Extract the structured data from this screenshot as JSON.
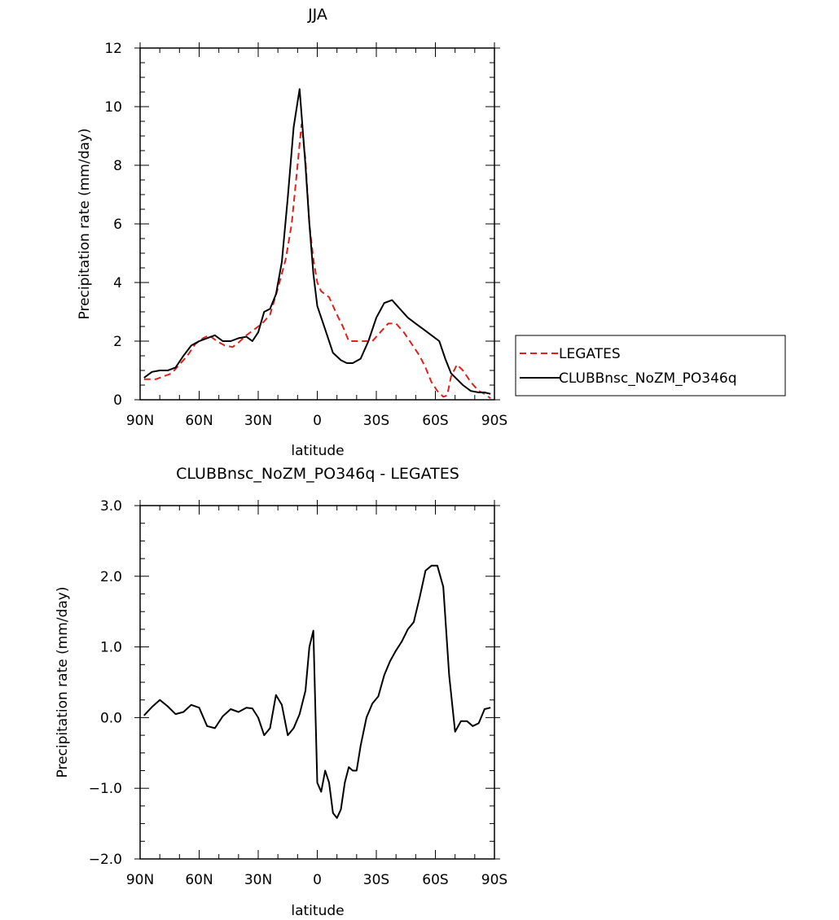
{
  "chart_data": [
    {
      "type": "line",
      "title": "JJA",
      "xlabel": "latitude",
      "ylabel": "Precipitation rate (mm/day)",
      "xlim": [
        90,
        -90
      ],
      "ylim": [
        0,
        12
      ],
      "x_tick_values": [
        90,
        60,
        30,
        0,
        -30,
        -60,
        -90
      ],
      "x_tick_labels": [
        "90N",
        "60N",
        "30N",
        "0",
        "30S",
        "60S",
        "90S"
      ],
      "y_tick_values": [
        0,
        2,
        4,
        6,
        8,
        10,
        12
      ],
      "y_tick_labels": [
        "0",
        "2",
        "4",
        "6",
        "8",
        "10",
        "12"
      ],
      "grid": false,
      "legend_position": "right",
      "series": [
        {
          "name": "LEGATES",
          "color": "#e0201b",
          "dash": "dashed",
          "x": [
            88,
            82,
            78,
            74,
            70,
            66,
            62,
            58,
            55,
            51,
            47,
            43,
            40,
            36,
            32,
            28,
            24,
            20,
            16,
            13,
            10,
            8,
            6,
            4,
            2,
            0,
            -2,
            -6,
            -10,
            -13,
            -16,
            -20,
            -24,
            -28,
            -32,
            -36,
            -40,
            -44,
            -48,
            -52,
            -55,
            -58,
            -61,
            -64,
            -66,
            -68,
            -71,
            -74,
            -78,
            -82,
            -85,
            -88
          ],
          "y": [
            0.7,
            0.7,
            0.8,
            0.9,
            1.2,
            1.5,
            1.9,
            2.1,
            2.2,
            2.0,
            1.85,
            1.8,
            1.95,
            2.2,
            2.4,
            2.6,
            2.9,
            3.8,
            4.8,
            6.0,
            8.0,
            9.4,
            8.2,
            6.0,
            4.8,
            4.0,
            3.7,
            3.5,
            2.9,
            2.5,
            2.0,
            2.0,
            2.0,
            2.0,
            2.3,
            2.6,
            2.6,
            2.3,
            1.9,
            1.5,
            1.1,
            0.6,
            0.3,
            0.1,
            0.15,
            0.8,
            1.2,
            1.0,
            0.6,
            0.3,
            0.2,
            0.05
          ]
        },
        {
          "name": "CLUBBnsc_NoZM_PO346q",
          "color": "#000000",
          "dash": "solid",
          "x": [
            88,
            84,
            80,
            76,
            72,
            68,
            64,
            60,
            56,
            52,
            48,
            44,
            40,
            36,
            33,
            30,
            27,
            24,
            21,
            18,
            15,
            12,
            9,
            6,
            4,
            2,
            0,
            -4,
            -8,
            -12,
            -15,
            -18,
            -22,
            -26,
            -30,
            -34,
            -38,
            -42,
            -46,
            -50,
            -54,
            -58,
            -62,
            -65,
            -68,
            -71,
            -74,
            -78,
            -82,
            -85,
            -88
          ],
          "y": [
            0.75,
            0.95,
            1.0,
            1.0,
            1.1,
            1.5,
            1.85,
            2.0,
            2.1,
            2.2,
            2.0,
            2.0,
            2.1,
            2.15,
            2.0,
            2.3,
            3.0,
            3.1,
            3.6,
            4.7,
            6.9,
            9.3,
            10.6,
            8.0,
            6.0,
            4.3,
            3.2,
            2.4,
            1.6,
            1.35,
            1.25,
            1.25,
            1.4,
            2.0,
            2.8,
            3.3,
            3.4,
            3.1,
            2.8,
            2.6,
            2.4,
            2.2,
            2.0,
            1.4,
            0.9,
            0.7,
            0.5,
            0.3,
            0.25,
            0.25,
            0.2
          ]
        }
      ]
    },
    {
      "type": "line",
      "title": "CLUBBnsc_NoZM_PO346q - LEGATES",
      "xlabel": "latitude",
      "ylabel": "Precipitation rate (mm/day)",
      "xlim": [
        90,
        -90
      ],
      "ylim": [
        -2.0,
        3.0
      ],
      "x_tick_values": [
        90,
        60,
        30,
        0,
        -30,
        -60,
        -90
      ],
      "x_tick_labels": [
        "90N",
        "60N",
        "30N",
        "0",
        "30S",
        "60S",
        "90S"
      ],
      "y_tick_values": [
        -2.0,
        -1.0,
        0.0,
        1.0,
        2.0,
        3.0
      ],
      "y_tick_labels": [
        "−2.0",
        "−1.0",
        "0.0",
        "1.0",
        "2.0",
        "3.0"
      ],
      "grid": false,
      "series": [
        {
          "color": "#000000",
          "dash": "solid",
          "x": [
            88,
            84,
            80,
            76,
            72,
            68,
            64,
            60,
            56,
            52,
            48,
            44,
            40,
            36,
            33,
            30,
            27,
            24,
            21,
            18,
            15,
            12,
            9,
            6,
            4,
            2,
            0,
            -2,
            -4,
            -6,
            -8,
            -10,
            -12,
            -14,
            -16,
            -18,
            -20,
            -22,
            -25,
            -28,
            -31,
            -34,
            -37,
            -40,
            -43,
            -46,
            -49,
            -52,
            -55,
            -58,
            -61,
            -64,
            -67,
            -70,
            -73,
            -76,
            -79,
            -82,
            -85,
            -88
          ],
          "y": [
            0.03,
            0.15,
            0.25,
            0.16,
            0.05,
            0.08,
            0.18,
            0.14,
            -0.12,
            -0.15,
            0.02,
            0.12,
            0.08,
            0.14,
            0.13,
            0.0,
            -0.25,
            -0.15,
            0.32,
            0.18,
            -0.25,
            -0.15,
            0.05,
            0.38,
            1.0,
            1.23,
            -0.92,
            -1.05,
            -0.75,
            -0.92,
            -1.35,
            -1.42,
            -1.3,
            -0.92,
            -0.7,
            -0.75,
            -0.75,
            -0.4,
            0.0,
            0.2,
            0.3,
            0.6,
            0.8,
            0.95,
            1.08,
            1.25,
            1.35,
            1.7,
            2.08,
            2.15,
            2.15,
            1.85,
            0.6,
            -0.2,
            -0.05,
            -0.05,
            -0.12,
            -0.08,
            0.12,
            0.14
          ]
        }
      ]
    }
  ]
}
